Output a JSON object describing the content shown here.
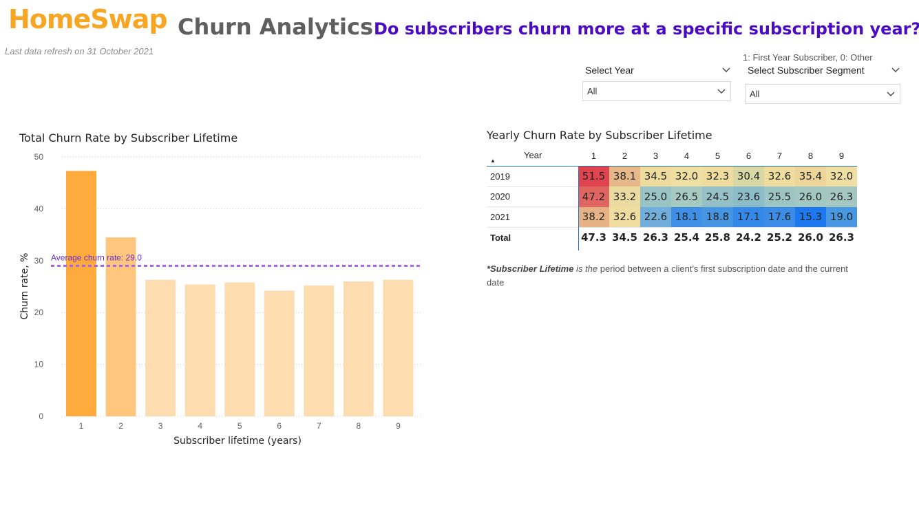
{
  "header": {
    "logo": "HomeSwap",
    "title": "Churn Analytics",
    "question": "Do subscribers churn more at a specific subscription year?",
    "refresh": "Last data refresh on 31 October 2021"
  },
  "slicers": {
    "note": "1: First Year Subscriber, 0: Other",
    "year": {
      "label": "Select Year",
      "value": "All"
    },
    "segment": {
      "label": "Select Subscriber Segment",
      "value": "All"
    }
  },
  "chart_data": {
    "type": "bar",
    "title": "Total Churn Rate by Subscriber Lifetime",
    "xlabel": "Subscriber lifetime (years)",
    "ylabel": "Churn rate, %",
    "categories": [
      "1",
      "2",
      "3",
      "4",
      "5",
      "6",
      "7",
      "8",
      "9"
    ],
    "values": [
      47.3,
      34.5,
      26.3,
      25.4,
      25.8,
      24.2,
      25.2,
      26.0,
      26.3
    ],
    "ylim": [
      0,
      50
    ],
    "yticks": [
      "0",
      "10",
      "20",
      "30",
      "40",
      "50"
    ],
    "reference_line": {
      "label": "Average churn rate: 29.0",
      "value": 29.0,
      "color": "#9f63e6"
    },
    "bar_colors": [
      "#ffaa3d",
      "#ffc77d",
      "#fddcb0",
      "#fddcb0",
      "#fddcb0",
      "#fddcb0",
      "#fddcb0",
      "#fddcb0",
      "#fddcb0"
    ],
    "grid": true
  },
  "matrix": {
    "title": "Yearly Churn Rate by Subscriber Lifetime",
    "corner_label": "Year",
    "columns": [
      "1",
      "2",
      "3",
      "4",
      "5",
      "6",
      "7",
      "8",
      "9"
    ],
    "rows": [
      {
        "label": "2019",
        "values": [
          "51.5",
          "38.1",
          "34.5",
          "32.0",
          "32.3",
          "30.4",
          "32.6",
          "35.4",
          "32.0"
        ],
        "colors": [
          "#e0444f",
          "#e6b88a",
          "#eedb9e",
          "#efdfa2",
          "#eedd9f",
          "#d8d8a6",
          "#eedd9f",
          "#ecd49b",
          "#efdfa2"
        ]
      },
      {
        "label": "2020",
        "values": [
          "47.2",
          "33.2",
          "25.0",
          "26.5",
          "24.5",
          "23.6",
          "25.5",
          "26.0",
          "26.3"
        ],
        "colors": [
          "#e06560",
          "#ecdba0",
          "#99c3c4",
          "#a6c9c1",
          "#95c1c6",
          "#8cbcc8",
          "#9cc4c3",
          "#a2c7c2",
          "#a4c8c1"
        ]
      },
      {
        "label": "2021",
        "values": [
          "38.2",
          "32.6",
          "22.6",
          "18.1",
          "18.8",
          "17.1",
          "17.6",
          "15.3",
          "19.0"
        ],
        "colors": [
          "#e6b285",
          "#eedd9f",
          "#72aedc",
          "#3d90e5",
          "#4695e3",
          "#3489e8",
          "#3a8ce6",
          "#1c78f0",
          "#4797e2"
        ]
      }
    ],
    "total": {
      "label": "Total",
      "values": [
        "47.3",
        "34.5",
        "26.3",
        "25.4",
        "25.8",
        "24.2",
        "25.2",
        "26.0",
        "26.3"
      ]
    }
  },
  "footnote": {
    "term": "*Subscriber Lifetime",
    "rest_italic": " is the",
    "rest": " period between a client's first subscription date and the current date"
  }
}
